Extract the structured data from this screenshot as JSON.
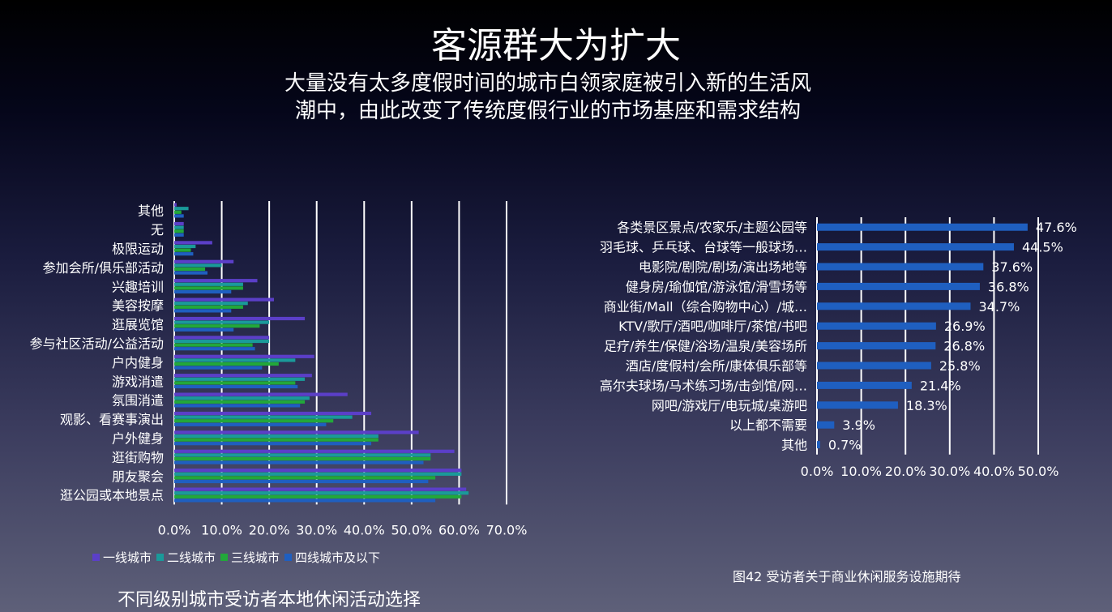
{
  "header": {
    "title": "客源群大为扩大",
    "subtitle_line1": "大量没有太多度假时间的城市白领家庭被引入新的生活风",
    "subtitle_line2": "潮中，由此改变了传统度假行业的市场基座和需求结构"
  },
  "left_caption": "不同级别城市受访者本地休闲活动选择",
  "right_caption": "图42 受访者关于商业休闲服务设施期待",
  "chart_data": [
    {
      "type": "bar",
      "orientation": "horizontal",
      "title": "不同级别城市受访者本地休闲活动选择",
      "categories": [
        "其他",
        "无",
        "极限运动",
        "参加会所/俱乐部活动",
        "兴趣培训",
        "美容按摩",
        "逛展览馆",
        "参与社区活动/公益活动",
        "户内健身",
        "游戏消遣",
        "氛围消遣",
        "观影、看赛事演出",
        "户外健身",
        "逛街购物",
        "朋友聚会",
        "逛公园或本地景点"
      ],
      "series": [
        {
          "name": "一线城市",
          "color": "#5b3fc8",
          "values": [
            0.5,
            2.0,
            8.0,
            12.5,
            17.5,
            21.0,
            27.5,
            20.0,
            29.5,
            29.0,
            36.5,
            41.5,
            51.5,
            59.0,
            60.5,
            61.5
          ]
        },
        {
          "name": "二线城市",
          "color": "#1a9a9a",
          "values": [
            3.0,
            2.0,
            4.5,
            10.0,
            14.5,
            15.5,
            20.0,
            20.0,
            25.5,
            27.5,
            28.5,
            37.5,
            43.0,
            54.0,
            60.5,
            62.0
          ]
        },
        {
          "name": "三线城市",
          "color": "#22a83a",
          "values": [
            1.5,
            2.0,
            3.5,
            6.5,
            14.5,
            14.5,
            18.0,
            16.5,
            22.0,
            25.5,
            27.5,
            33.5,
            43.0,
            54.0,
            55.0,
            60.5
          ]
        },
        {
          "name": "四线城市及以下",
          "color": "#1f5fc0",
          "values": [
            2.0,
            2.0,
            4.0,
            7.0,
            12.0,
            12.0,
            12.5,
            17.0,
            18.5,
            26.0,
            26.5,
            32.0,
            41.5,
            52.5,
            53.5,
            55.0
          ]
        }
      ],
      "x_ticks": [
        "0.0%",
        "10.0%",
        "20.0%",
        "30.0%",
        "40.0%",
        "50.0%",
        "60.0%",
        "70.0%"
      ],
      "xlim": [
        0,
        70
      ],
      "grid": true,
      "legend_position": "bottom"
    },
    {
      "type": "bar",
      "orientation": "horizontal",
      "title": "图42 受访者关于商业休闲服务设施期待",
      "categories": [
        "各类景区景点/农家乐/主题公园等",
        "羽毛球、乒乓球、台球等一般球场…",
        "电影院/剧院/剧场/演出场地等",
        "健身房/瑜伽馆/游泳馆/滑雪场等",
        "商业街/Mall（综合购物中心）/城…",
        "KTV/歌厅/酒吧/咖啡厅/茶馆/书吧",
        "足疗/养生/保健/浴场/温泉/美容场所",
        "酒店/度假村/会所/康体俱乐部等",
        "高尔夫球场/马术练习场/击剑馆/网…",
        "网吧/游戏厅/电玩城/桌游吧",
        "以上都不需要",
        "其他"
      ],
      "values": [
        47.6,
        44.5,
        37.6,
        36.8,
        34.7,
        26.9,
        26.8,
        25.8,
        21.4,
        18.3,
        3.9,
        0.7
      ],
      "labels": [
        "47.6%",
        "44.5%",
        "37.6%",
        "36.8%",
        "34.7%",
        "26.9%",
        "26.8%",
        "25.8%",
        "21.4%",
        "18.3%",
        "3.9%",
        "0.7%"
      ],
      "x_ticks": [
        "0.0%",
        "10.0%",
        "20.0%",
        "30.0%",
        "40.0%",
        "50.0%"
      ],
      "xlim": [
        0,
        50
      ],
      "color": "#1f5fc0",
      "grid": true
    }
  ]
}
